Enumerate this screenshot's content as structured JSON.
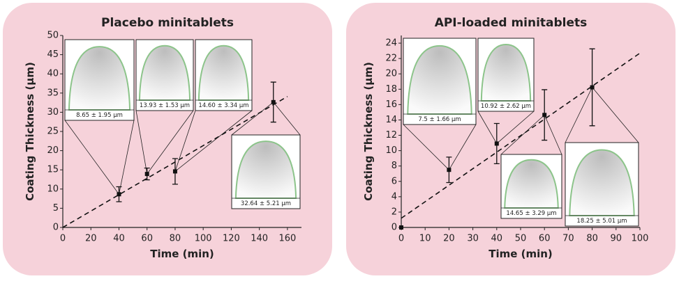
{
  "chart_data": [
    {
      "type": "scatter",
      "title": "Placebo minitablets",
      "x_label": "Time (min)",
      "y_label": "Coating Thickness (μm)",
      "x": [
        40,
        60,
        80,
        150
      ],
      "values": [
        8.65,
        13.93,
        14.6,
        32.64
      ],
      "errors": [
        1.95,
        1.53,
        3.34,
        5.21
      ],
      "value_labels": [
        "8.65 ± 1.95 μm",
        "13.93 ± 1.53 μm",
        "14.60 ± 3.34 μm",
        "32.64 ± 5.21 μm"
      ],
      "trend": {
        "x": [
          0,
          160
        ],
        "values": [
          0,
          34.1
        ]
      },
      "color": "#111111",
      "xlim": [
        0,
        170
      ],
      "xticks": [
        0,
        20,
        40,
        60,
        80,
        100,
        120,
        140,
        160
      ],
      "ylim": [
        0,
        50
      ],
      "yticks": [
        0,
        5,
        10,
        15,
        20,
        25,
        30,
        35,
        40,
        45,
        50
      ]
    },
    {
      "type": "scatter",
      "title": "API-loaded minitablets",
      "x_label": "Time (min)",
      "y_label": "Coating Thickness (μm)",
      "x": [
        0,
        20,
        40,
        60,
        80
      ],
      "values": [
        0,
        7.5,
        10.92,
        14.65,
        18.25
      ],
      "errors": [
        null,
        1.66,
        2.62,
        3.29,
        5.01
      ],
      "value_labels": [
        null,
        "7.5 ± 1.66 μm",
        "10.92 ± 2.62 μm",
        "14.65 ± 3.29 μm",
        "18.25 ± 5.01 μm"
      ],
      "trend": {
        "x": [
          0,
          100
        ],
        "values": [
          1.2,
          22.7
        ]
      },
      "color": "#111111",
      "xlim": [
        0,
        100
      ],
      "xticks": [
        0,
        10,
        20,
        30,
        40,
        50,
        60,
        70,
        80,
        90,
        100
      ],
      "ylim": [
        0,
        25
      ],
      "yticks": [
        0,
        2,
        4,
        6,
        8,
        10,
        12,
        14,
        16,
        18,
        20,
        22,
        24
      ]
    }
  ]
}
